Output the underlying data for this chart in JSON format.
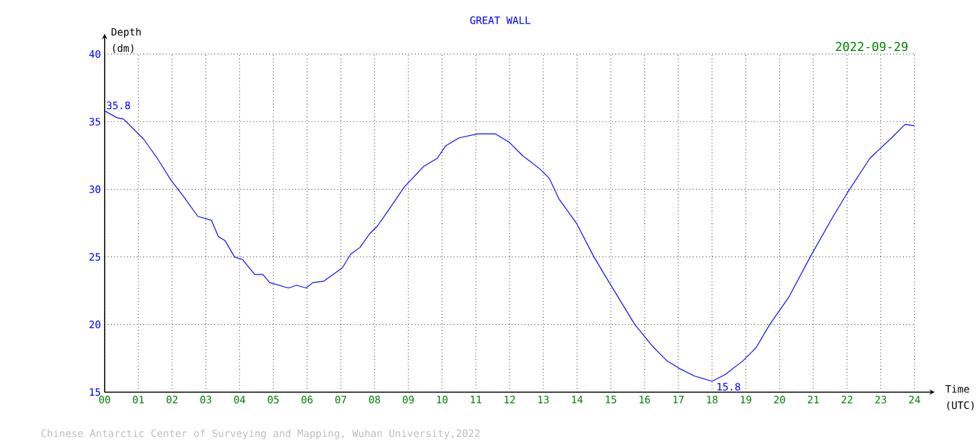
{
  "chart_data": {
    "type": "line",
    "title": "GREAT WALL",
    "subtitle": "2022-09-29",
    "xlabel": "Time (UTC)",
    "ylabel": "Depth (dm)",
    "annotations": [
      {
        "text": "35.8",
        "x": 0,
        "y": 35.8
      },
      {
        "text": "15.8",
        "x": 18,
        "y": 15.8
      },
      "Chinese Antarctic Center of Surveying and Mapping, Wuhan University,2022"
    ],
    "x": [
      0,
      0.36,
      0.56,
      0.76,
      0.96,
      1.16,
      1.36,
      1.56,
      1.76,
      1.96,
      2.36,
      2.76,
      3.17,
      3.37,
      3.57,
      3.85,
      4.09,
      4.45,
      4.69,
      4.89,
      5.17,
      5.45,
      5.69,
      5.97,
      6.17,
      6.49,
      6.77,
      7.05,
      7.29,
      7.57,
      7.85,
      8.09,
      8.37,
      8.89,
      9.46,
      9.86,
      10.1,
      10.5,
      11.06,
      11.58,
      11.98,
      12.38,
      12.9,
      13.18,
      13.46,
      13.98,
      14.5,
      14.98,
      15.71,
      16.27,
      16.67,
      17.07,
      17.47,
      18.0,
      18.39,
      18.91,
      19.31,
      19.71,
      20.27,
      20.91,
      21.59,
      22.0,
      22.68,
      23.32,
      23.72,
      24.0
    ],
    "values": [
      35.8,
      35.3,
      35.2,
      34.7,
      34.2,
      33.7,
      33.0,
      32.3,
      31.5,
      30.7,
      29.4,
      28.0,
      27.7,
      26.5,
      26.2,
      25.0,
      24.8,
      23.7,
      23.7,
      23.1,
      22.9,
      22.7,
      22.9,
      22.7,
      23.1,
      23.2,
      23.7,
      24.2,
      25.2,
      25.7,
      26.7,
      27.3,
      28.3,
      30.2,
      31.7,
      32.3,
      33.2,
      33.8,
      34.1,
      34.1,
      33.5,
      32.5,
      31.5,
      30.8,
      29.3,
      27.5,
      25.0,
      23.0,
      20.0,
      18.3,
      17.3,
      16.7,
      16.2,
      15.8,
      16.3,
      17.3,
      18.3,
      20.0,
      22.0,
      25.0,
      28.0,
      29.7,
      32.3,
      33.8,
      34.8,
      34.7
    ],
    "color": "#0000ff",
    "xlim": [
      0,
      24
    ],
    "ylim": [
      15,
      40
    ],
    "xticks": [
      {
        "value": 0,
        "label": "00"
      },
      {
        "value": 1,
        "label": "01"
      },
      {
        "value": 2,
        "label": "02"
      },
      {
        "value": 3,
        "label": "03"
      },
      {
        "value": 4,
        "label": "04"
      },
      {
        "value": 5,
        "label": "05"
      },
      {
        "value": 6,
        "label": "06"
      },
      {
        "value": 7,
        "label": "07"
      },
      {
        "value": 8,
        "label": "08"
      },
      {
        "value": 9,
        "label": "09"
      },
      {
        "value": 10,
        "label": "10"
      },
      {
        "value": 11,
        "label": "11"
      },
      {
        "value": 12,
        "label": "12"
      },
      {
        "value": 13,
        "label": "13"
      },
      {
        "value": 14,
        "label": "14"
      },
      {
        "value": 15,
        "label": "15"
      },
      {
        "value": 16,
        "label": "16"
      },
      {
        "value": 17,
        "label": "17"
      },
      {
        "value": 18,
        "label": "18"
      },
      {
        "value": 19,
        "label": "19"
      },
      {
        "value": 20,
        "label": "20"
      },
      {
        "value": 21,
        "label": "21"
      },
      {
        "value": 22,
        "label": "22"
      },
      {
        "value": 23,
        "label": "23"
      },
      {
        "value": 24,
        "label": "24"
      }
    ],
    "yticks": [
      15,
      20,
      25,
      30,
      35,
      40
    ],
    "grid": true
  }
}
